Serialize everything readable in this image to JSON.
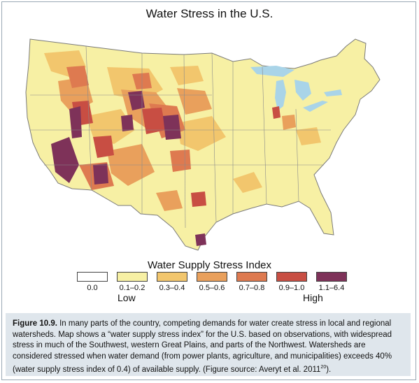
{
  "title": "Water Stress in the U.S.",
  "legend": {
    "title": "Water Supply Stress Index",
    "items": [
      {
        "label": "0.0",
        "color": "#ffffff"
      },
      {
        "label": "0.1–0.2",
        "color": "#f7f0a4"
      },
      {
        "label": "0.3–0.4",
        "color": "#f2c66d"
      },
      {
        "label": "0.5–0.6",
        "color": "#e9a05c"
      },
      {
        "label": "0.7–0.8",
        "color": "#de7a50"
      },
      {
        "label": "0.9–1.0",
        "color": "#c84e43"
      },
      {
        "label": "1.1–6.4",
        "color": "#7e3259"
      }
    ],
    "low": "Low",
    "high": "High"
  },
  "caption": {
    "figure_label": "Figure 10.9.",
    "text": " In many parts of the country, competing demands for water create stress in local and regional watersheds. Map shows a “water supply stress index” for the U.S. based on observations, with widespread stress in much of the Southwest, western Great Plains, and parts of the Northwest. Watersheds are considered stressed when water demand (from power plants, agriculture, and municipalities) exceeds 40% (water supply stress index of 0.4) of available supply. (Figure source: Averyt et al. 2011",
    "superscript": "20",
    "end": ")."
  },
  "colors": {
    "lake": "#a9d4e8",
    "base": "#f7f0a4",
    "border": "#7a7a7a"
  }
}
